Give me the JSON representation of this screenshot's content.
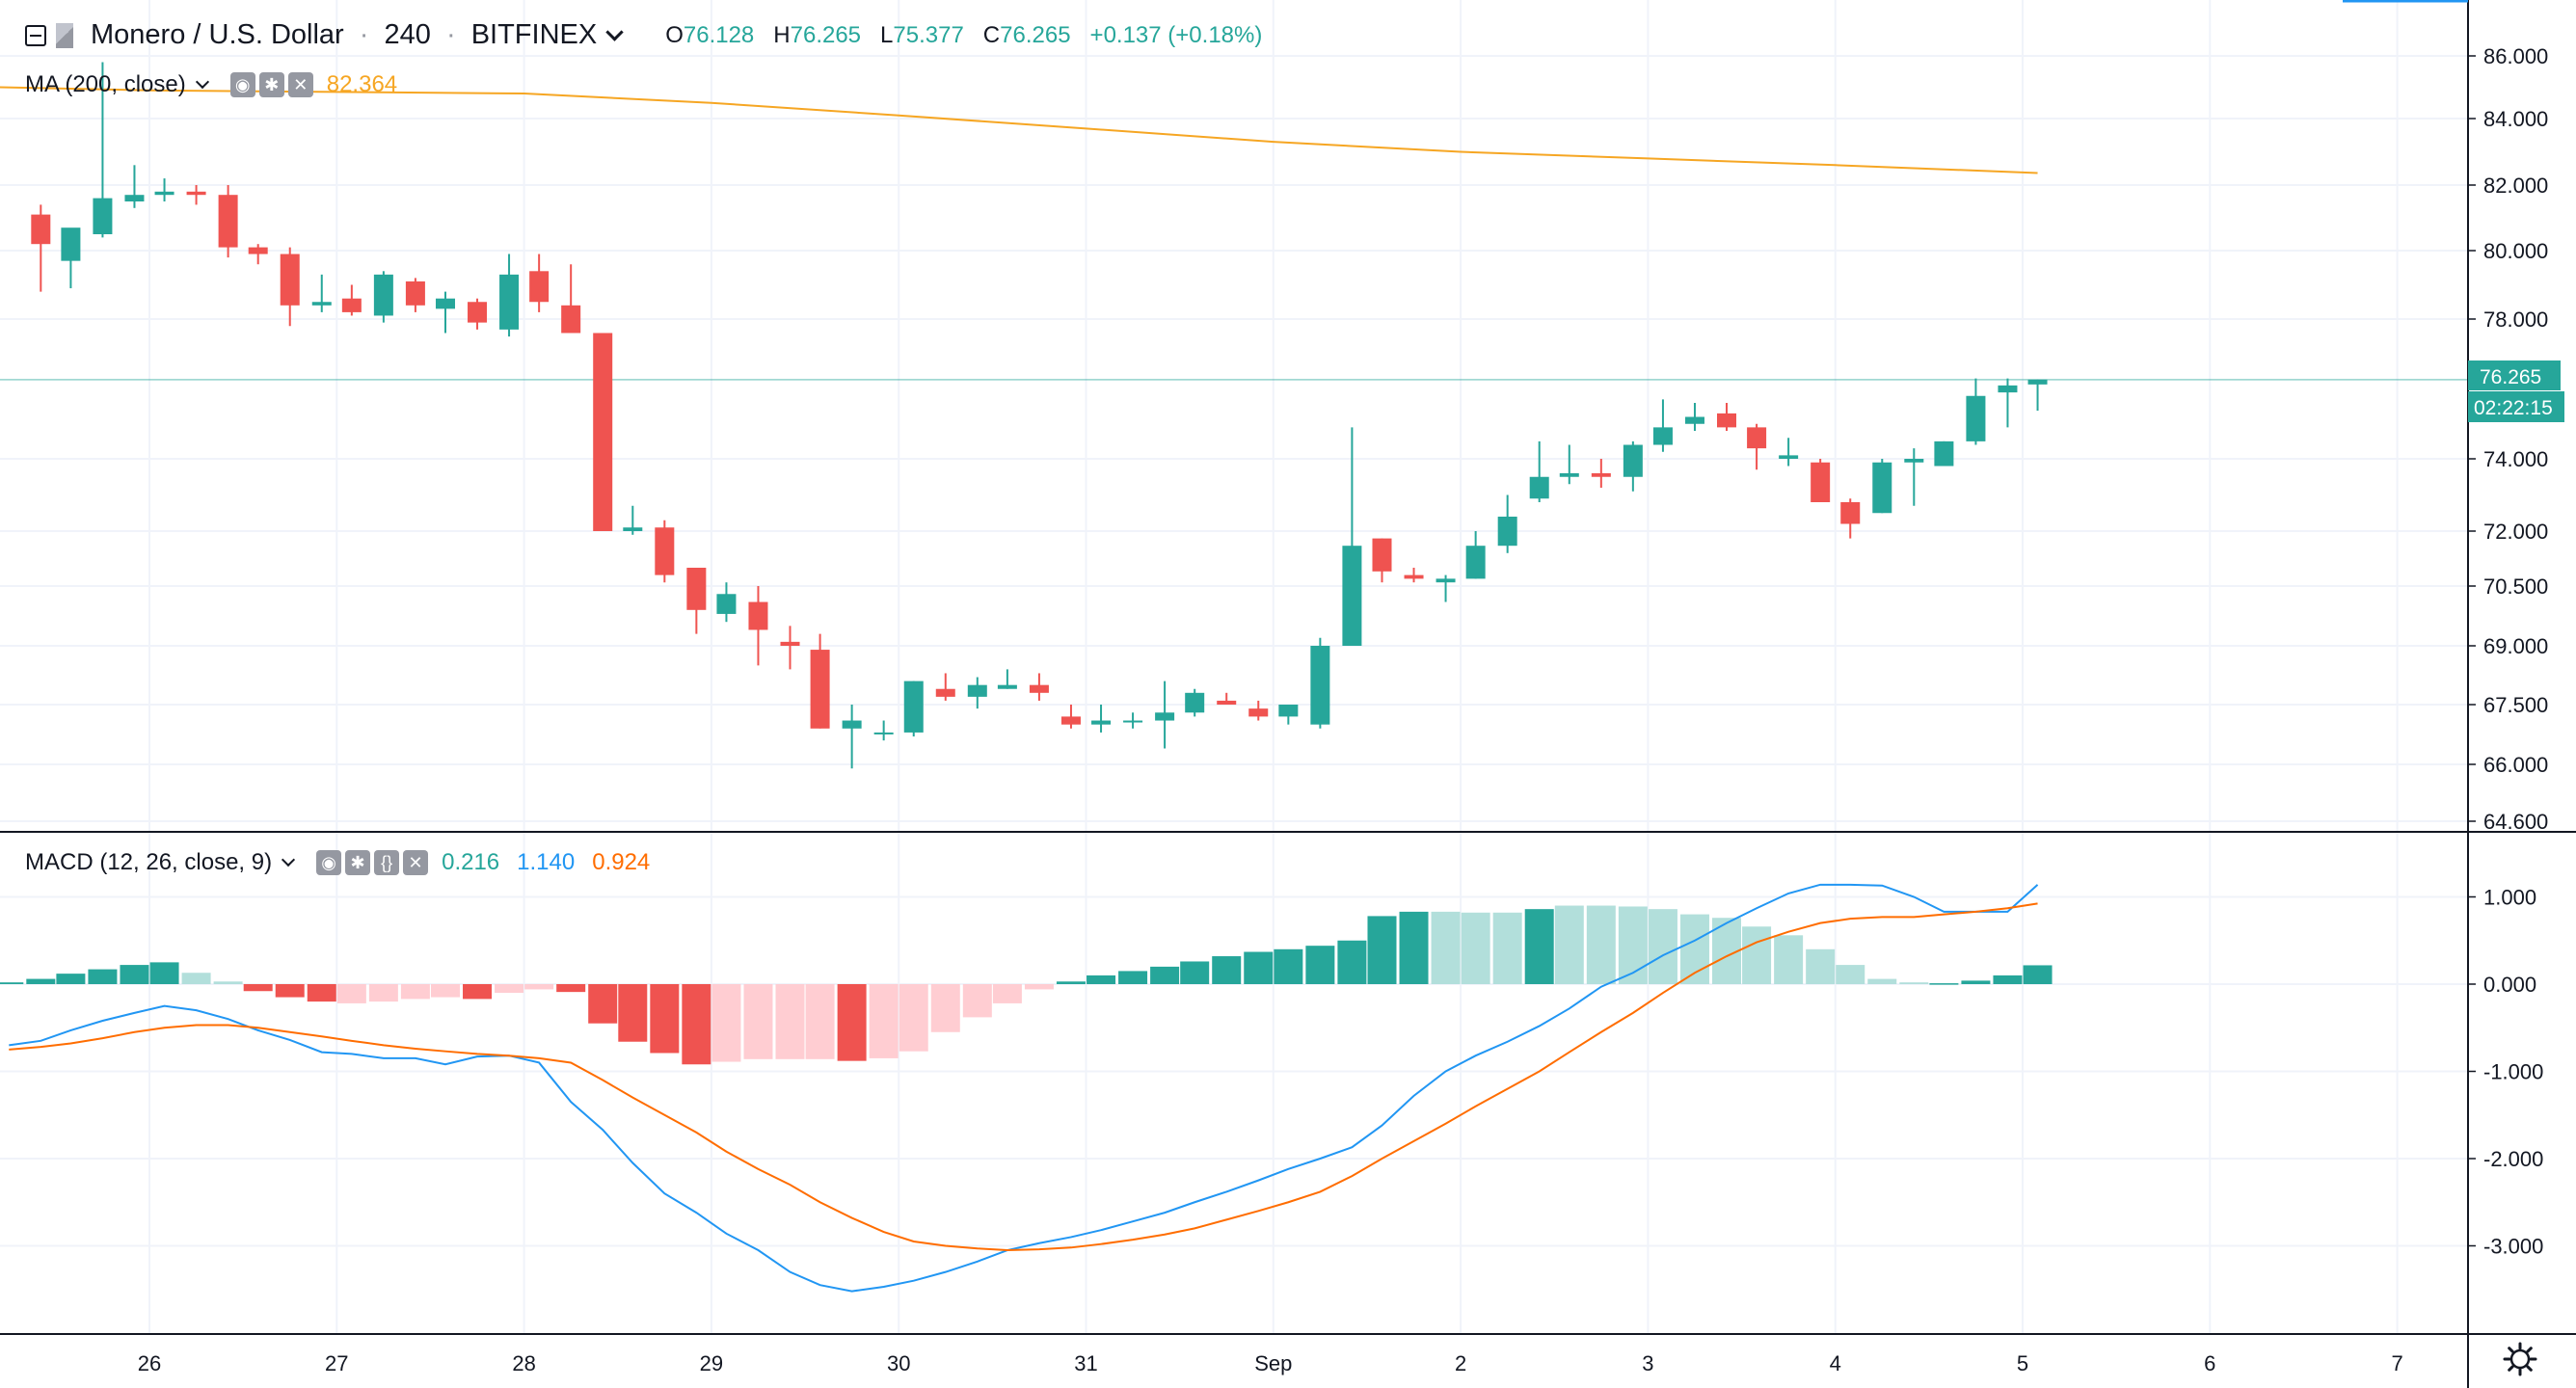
{
  "header": {
    "symbol_title": "Monero / U.S. Dollar",
    "interval": "240",
    "exchange": "BITFINEX",
    "ohlc": {
      "open_label": "O",
      "open": "76.128",
      "high_label": "H",
      "high": "76.265",
      "low_label": "L",
      "low": "75.377",
      "close_label": "C",
      "close": "76.265",
      "change": "+0.137 (+0.18%)"
    }
  },
  "ma_legend": {
    "label": "MA (200, close)",
    "value": "82.364"
  },
  "macd_legend": {
    "label": "MACD (12, 26, close, 9)",
    "hist": "0.216",
    "macd": "1.140",
    "signal": "0.924"
  },
  "last_price": {
    "label": "76.265",
    "countdown": "02:22:15"
  },
  "x_ticks": [
    "26",
    "27",
    "28",
    "29",
    "30",
    "31",
    "Sep",
    "2",
    "3",
    "4",
    "5",
    "6",
    "7"
  ],
  "colors": {
    "up": "#26a69a",
    "down": "#ef5350",
    "ma": "#f6a623",
    "macd": "#2196f3",
    "signal": "#ff6d00",
    "hist_up": "#26a69a",
    "hist_up_light": "#b2dfdb",
    "hist_down": "#ef5350",
    "hist_down_light": "#ffcdd2"
  },
  "chart_data": [
    {
      "type": "candlestick",
      "title": "Monero / U.S. Dollar, 240, BITFINEX",
      "y_ticks": [
        86.0,
        84.0,
        82.0,
        80.0,
        78.0,
        74.0,
        72.0,
        70.5,
        69.0,
        67.5,
        66.0,
        64.6
      ],
      "y_tick_labels": [
        "86.000",
        "84.000",
        "82.000",
        "80.000",
        "78.000",
        "74.000",
        "72.000",
        "70.500",
        "69.000",
        "67.500",
        "66.000",
        "64.600"
      ],
      "x_day_ticks": [
        1,
        2,
        3,
        4,
        5,
        6,
        7,
        8,
        9,
        10,
        11,
        12,
        13
      ],
      "x_range": [
        0.2,
        12.15
      ],
      "candles": [
        [
          0.42,
          81.1,
          81.4,
          78.8,
          80.2
        ],
        [
          0.58,
          79.7,
          80.6,
          78.9,
          80.7
        ],
        [
          0.75,
          80.5,
          85.8,
          80.4,
          81.6
        ],
        [
          0.92,
          81.5,
          82.6,
          81.3,
          81.7
        ],
        [
          1.08,
          81.7,
          82.2,
          81.5,
          81.8
        ],
        [
          1.25,
          81.8,
          82.0,
          81.4,
          81.7
        ],
        [
          1.42,
          81.7,
          82.0,
          79.8,
          80.1
        ],
        [
          1.58,
          80.1,
          80.2,
          79.6,
          79.9
        ],
        [
          1.75,
          79.9,
          80.1,
          77.8,
          78.4
        ],
        [
          1.92,
          78.4,
          79.3,
          78.2,
          78.5
        ],
        [
          2.08,
          78.6,
          79.0,
          78.1,
          78.2
        ],
        [
          2.25,
          78.1,
          79.4,
          77.9,
          79.3
        ],
        [
          2.42,
          79.1,
          79.2,
          78.2,
          78.4
        ],
        [
          2.58,
          78.3,
          78.8,
          77.6,
          78.6
        ],
        [
          2.75,
          78.5,
          78.6,
          77.7,
          77.9
        ],
        [
          2.92,
          77.7,
          79.9,
          77.5,
          79.3
        ],
        [
          3.08,
          79.4,
          79.9,
          78.2,
          78.5
        ],
        [
          3.25,
          78.4,
          79.6,
          77.6,
          77.6
        ],
        [
          3.42,
          77.6,
          77.6,
          72.0,
          72.0
        ],
        [
          3.58,
          72.0,
          72.7,
          71.9,
          72.1
        ],
        [
          3.75,
          72.1,
          72.3,
          70.6,
          70.8
        ],
        [
          3.92,
          71.0,
          71.0,
          69.3,
          69.9
        ],
        [
          4.08,
          69.8,
          70.6,
          69.6,
          70.3
        ],
        [
          4.25,
          70.1,
          70.5,
          68.5,
          69.4
        ],
        [
          4.42,
          69.1,
          69.5,
          68.4,
          69.0
        ],
        [
          4.58,
          68.9,
          69.3,
          66.9,
          66.9
        ],
        [
          4.75,
          66.9,
          67.5,
          65.9,
          67.1
        ],
        [
          4.92,
          66.8,
          67.1,
          66.6,
          66.8
        ],
        [
          5.08,
          66.8,
          68.1,
          66.7,
          68.1
        ],
        [
          5.25,
          67.9,
          68.3,
          67.6,
          67.7
        ],
        [
          5.42,
          67.7,
          68.2,
          67.4,
          68.0
        ],
        [
          5.58,
          67.9,
          68.4,
          67.9,
          68.0
        ],
        [
          5.75,
          68.0,
          68.3,
          67.6,
          67.8
        ],
        [
          5.92,
          67.2,
          67.5,
          66.9,
          67.0
        ],
        [
          6.08,
          67.0,
          67.5,
          66.8,
          67.1
        ],
        [
          6.25,
          67.1,
          67.3,
          66.9,
          67.1
        ],
        [
          6.42,
          67.1,
          68.1,
          66.4,
          67.3
        ],
        [
          6.58,
          67.3,
          67.9,
          67.2,
          67.8
        ],
        [
          6.75,
          67.6,
          67.8,
          67.5,
          67.5
        ],
        [
          6.92,
          67.4,
          67.6,
          67.1,
          67.2
        ],
        [
          7.08,
          67.2,
          67.5,
          67.0,
          67.5
        ],
        [
          7.25,
          67.0,
          69.2,
          66.9,
          69.0
        ],
        [
          7.42,
          69.0,
          74.9,
          69.0,
          71.6
        ],
        [
          7.58,
          71.8,
          71.8,
          70.6,
          70.9
        ],
        [
          7.75,
          70.8,
          71.0,
          70.6,
          70.7
        ],
        [
          7.92,
          70.6,
          70.8,
          70.1,
          70.7
        ],
        [
          8.08,
          70.7,
          72.0,
          70.7,
          71.6
        ],
        [
          8.25,
          71.6,
          73.0,
          71.4,
          72.4
        ],
        [
          8.42,
          72.9,
          74.5,
          72.8,
          73.5
        ],
        [
          8.58,
          73.5,
          74.4,
          73.3,
          73.6
        ],
        [
          8.75,
          73.6,
          74.0,
          73.2,
          73.5
        ],
        [
          8.92,
          73.5,
          74.5,
          73.1,
          74.4
        ],
        [
          9.08,
          74.4,
          75.7,
          74.2,
          74.9
        ],
        [
          9.25,
          75.0,
          75.6,
          74.8,
          75.2
        ],
        [
          9.42,
          75.3,
          75.6,
          74.8,
          74.9
        ],
        [
          9.58,
          74.9,
          75.0,
          73.7,
          74.3
        ],
        [
          9.75,
          74.0,
          74.6,
          73.8,
          74.1
        ],
        [
          9.92,
          73.9,
          74.0,
          72.8,
          72.8
        ],
        [
          10.08,
          72.8,
          72.9,
          71.8,
          72.2
        ],
        [
          10.25,
          72.5,
          74.0,
          72.5,
          73.9
        ],
        [
          10.42,
          73.9,
          74.3,
          72.7,
          74.0
        ],
        [
          10.58,
          73.8,
          74.5,
          73.8,
          74.5
        ],
        [
          10.75,
          74.5,
          76.3,
          74.4,
          75.8
        ],
        [
          10.92,
          75.9,
          76.3,
          74.9,
          76.1
        ],
        [
          11.08,
          76.128,
          76.265,
          75.377,
          76.265
        ]
      ],
      "series": [
        {
          "name": "MA (200, close)",
          "x": [
            0.2,
            1.0,
            2.0,
            3.0,
            4.0,
            5.0,
            6.0,
            7.0,
            8.0,
            9.0,
            10.0,
            11.08
          ],
          "values": [
            85.0,
            84.9,
            84.85,
            84.8,
            84.5,
            84.1,
            83.7,
            83.3,
            83.0,
            82.8,
            82.6,
            82.364
          ]
        }
      ],
      "last_price": 76.265,
      "grid": true
    },
    {
      "type": "macd",
      "title": "MACD (12, 26, close, 9)",
      "y_ticks": [
        1.0,
        0.0,
        -1.0,
        -2.0,
        -3.0
      ],
      "y_tick_labels": [
        "1.000",
        "0.000",
        "-1.000",
        "-2.000",
        "-3.000"
      ],
      "x_day_ticks": [
        1,
        2,
        3,
        4,
        5,
        6,
        7,
        8,
        9,
        10,
        11,
        12,
        13
      ],
      "x_range": [
        0.2,
        12.15
      ],
      "x": [
        0.25,
        0.42,
        0.58,
        0.75,
        0.92,
        1.08,
        1.25,
        1.42,
        1.58,
        1.75,
        1.92,
        2.08,
        2.25,
        2.42,
        2.58,
        2.75,
        2.92,
        3.08,
        3.25,
        3.42,
        3.58,
        3.75,
        3.92,
        4.08,
        4.25,
        4.42,
        4.58,
        4.75,
        4.92,
        5.08,
        5.25,
        5.42,
        5.58,
        5.75,
        5.92,
        6.08,
        6.25,
        6.42,
        6.58,
        6.75,
        6.92,
        7.08,
        7.25,
        7.42,
        7.58,
        7.75,
        7.92,
        8.08,
        8.25,
        8.42,
        8.58,
        8.75,
        8.92,
        9.08,
        9.25,
        9.42,
        9.58,
        9.75,
        9.92,
        10.08,
        10.25,
        10.42,
        10.58,
        10.75,
        10.92,
        11.08
      ],
      "histogram": [
        0.02,
        0.06,
        0.12,
        0.17,
        0.22,
        0.25,
        0.13,
        0.03,
        -0.08,
        -0.15,
        -0.2,
        -0.22,
        -0.2,
        -0.17,
        -0.15,
        -0.17,
        -0.1,
        -0.06,
        -0.09,
        -0.45,
        -0.66,
        -0.79,
        -0.92,
        -0.89,
        -0.86,
        -0.86,
        -0.86,
        -0.88,
        -0.85,
        -0.77,
        -0.55,
        -0.38,
        -0.22,
        -0.06,
        0.03,
        0.1,
        0.15,
        0.2,
        0.26,
        0.32,
        0.37,
        0.4,
        0.44,
        0.5,
        0.78,
        0.83,
        0.83,
        0.82,
        0.82,
        0.86,
        0.9,
        0.9,
        0.89,
        0.86,
        0.8,
        0.76,
        0.66,
        0.56,
        0.4,
        0.22,
        0.06,
        0.02,
        0.01,
        0.04,
        0.1,
        0.216
      ],
      "histogram_light": [
        false,
        false,
        false,
        false,
        false,
        false,
        true,
        true,
        false,
        false,
        false,
        true,
        true,
        true,
        true,
        false,
        true,
        true,
        false,
        false,
        false,
        false,
        false,
        true,
        true,
        true,
        true,
        false,
        true,
        true,
        true,
        true,
        true,
        true,
        false,
        false,
        false,
        false,
        false,
        false,
        false,
        false,
        false,
        false,
        false,
        false,
        true,
        true,
        true,
        false,
        true,
        true,
        true,
        true,
        true,
        true,
        true,
        true,
        true,
        true,
        true,
        true,
        false,
        false,
        false,
        false
      ],
      "series": [
        {
          "name": "MACD",
          "values": [
            -0.7,
            -0.65,
            -0.53,
            -0.42,
            -0.33,
            -0.25,
            -0.3,
            -0.4,
            -0.53,
            -0.64,
            -0.78,
            -0.8,
            -0.85,
            -0.85,
            -0.92,
            -0.83,
            -0.82,
            -0.9,
            -1.35,
            -1.67,
            -2.05,
            -2.4,
            -2.62,
            -2.86,
            -3.05,
            -3.3,
            -3.45,
            -3.52,
            -3.47,
            -3.4,
            -3.3,
            -3.18,
            -3.05,
            -2.97,
            -2.9,
            -2.82,
            -2.72,
            -2.62,
            -2.5,
            -2.38,
            -2.25,
            -2.12,
            -2.0,
            -1.87,
            -1.62,
            -1.28,
            -1.0,
            -0.82,
            -0.66,
            -0.48,
            -0.28,
            -0.03,
            0.13,
            0.33,
            0.5,
            0.7,
            0.87,
            1.04,
            1.14,
            1.14,
            1.13,
            1.0,
            0.83,
            0.83,
            0.83,
            1.14
          ]
        },
        {
          "name": "Signal",
          "values": [
            -0.75,
            -0.72,
            -0.68,
            -0.62,
            -0.55,
            -0.5,
            -0.47,
            -0.47,
            -0.5,
            -0.55,
            -0.6,
            -0.65,
            -0.7,
            -0.74,
            -0.77,
            -0.8,
            -0.82,
            -0.85,
            -0.9,
            -1.1,
            -1.3,
            -1.5,
            -1.7,
            -1.92,
            -2.12,
            -2.3,
            -2.5,
            -2.68,
            -2.84,
            -2.95,
            -3.0,
            -3.03,
            -3.05,
            -3.04,
            -3.02,
            -2.98,
            -2.93,
            -2.87,
            -2.8,
            -2.7,
            -2.6,
            -2.5,
            -2.38,
            -2.2,
            -2.0,
            -1.8,
            -1.6,
            -1.4,
            -1.2,
            -1.0,
            -0.78,
            -0.55,
            -0.33,
            -0.1,
            0.13,
            0.32,
            0.48,
            0.6,
            0.7,
            0.75,
            0.77,
            0.77,
            0.8,
            0.83,
            0.87,
            0.924
          ]
        }
      ],
      "grid": true
    }
  ]
}
